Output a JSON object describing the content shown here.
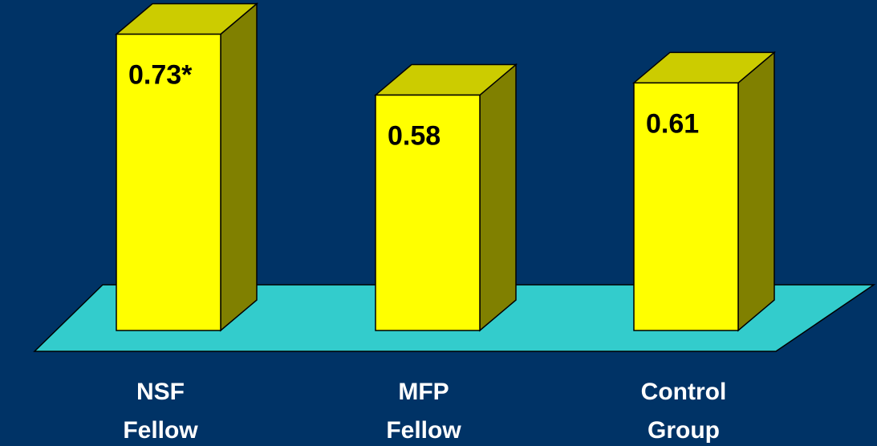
{
  "colors": {
    "background": "#003366",
    "floor": "#33cccc",
    "bar_front": "#ffff00",
    "bar_side": "#808000",
    "bar_top": "#cccc00",
    "value_text": "#000000",
    "category_text": "#ffffff"
  },
  "chart_data": {
    "type": "bar",
    "style": "3d",
    "title": "",
    "xlabel": "",
    "ylabel": "",
    "grid": false,
    "legend": "none",
    "ylim": [
      0,
      0.8
    ],
    "categories": [
      {
        "line1": "NSF",
        "line2": "Fellow"
      },
      {
        "line1": "MFP",
        "line2": "Fellow"
      },
      {
        "line1": "Control",
        "line2": "Group"
      }
    ],
    "values": [
      0.73,
      0.58,
      0.61
    ],
    "data_labels": [
      "0.73*",
      "0.58",
      "0.61"
    ]
  }
}
